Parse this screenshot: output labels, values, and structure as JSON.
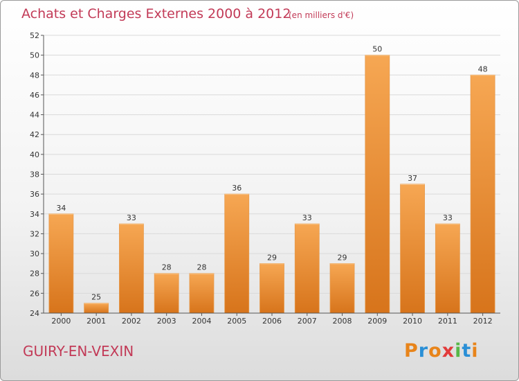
{
  "title": "Achats et Charges Externes 2000 à 2012",
  "subtitle": "(en milliers d'€)",
  "commune": "GUIRY-EN-VEXIN",
  "brand": {
    "text": "Proxiti",
    "letter_colors": [
      "#e8841a",
      "#2a8fd6",
      "#e8841a",
      "#e23b3b",
      "#58b848",
      "#2a8fd6",
      "#e8841a"
    ]
  },
  "colors": {
    "title": "#c23a57",
    "bar_light": "#f6a753",
    "bar_dark": "#d7741b",
    "grid": "#d9d9d9",
    "axis": "#555555"
  },
  "chart_data": {
    "type": "bar",
    "categories": [
      "2000",
      "2001",
      "2002",
      "2003",
      "2004",
      "2005",
      "2006",
      "2007",
      "2008",
      "2009",
      "2010",
      "2011",
      "2012"
    ],
    "values": [
      34,
      25,
      33,
      28,
      28,
      36,
      29,
      33,
      29,
      50,
      37,
      33,
      48
    ],
    "ylim": [
      24,
      52
    ],
    "yticks": [
      24,
      26,
      28,
      30,
      32,
      34,
      36,
      38,
      40,
      42,
      44,
      46,
      48,
      50,
      52
    ],
    "grid": true,
    "data_labels": true
  }
}
